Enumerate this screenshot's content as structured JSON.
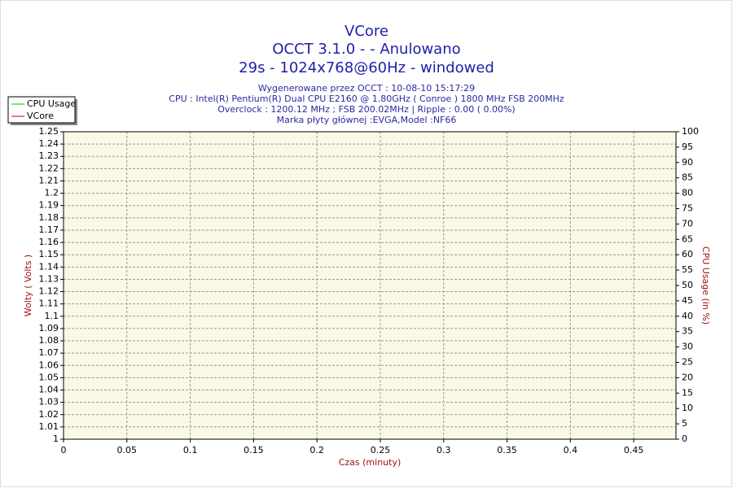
{
  "chart_data": {
    "type": "line",
    "title": "VCore",
    "title_lines": [
      "OCCT 3.1.0 -  - Anulowano",
      "29s - 1024x768@60Hz - windowed"
    ],
    "subtitle_lines": [
      "Wygenerowane przez OCCT : 10-08-10 15:17:29",
      "CPU : Intel(R) Pentium(R) Dual CPU E2160 @ 1.80GHz ( Conroe ) 1800 MHz FSB 200MHz",
      "Overclock : 1200.12 MHz ; FSB 200.02MHz | Ripple : 0.00 ( 0.00%)",
      "Marka płyty głównej :EVGA,Model :NF66"
    ],
    "xlabel": "Czas (minuty)",
    "ylabel": "Wolty ( Volts )",
    "y2label": "CPU Usage (in %)",
    "x": [],
    "series": [
      {
        "name": "CPU Usage",
        "color": "#00c000",
        "values": [],
        "axis": "y2"
      },
      {
        "name": "VCore",
        "color": "#c00000",
        "values": []
      }
    ],
    "xlim": [
      0,
      0.48333
    ],
    "xticks": [
      0,
      0.05,
      0.1,
      0.15,
      0.2,
      0.25,
      0.3,
      0.35,
      0.4,
      0.45
    ],
    "ylim": [
      1,
      1.25
    ],
    "yticks": [
      1,
      1.01,
      1.02,
      1.03,
      1.04,
      1.05,
      1.06,
      1.07,
      1.08,
      1.09,
      1.1,
      1.11,
      1.12,
      1.13,
      1.14,
      1.15,
      1.16,
      1.17,
      1.18,
      1.19,
      1.2,
      1.21,
      1.22,
      1.23,
      1.24,
      1.25
    ],
    "y2lim": [
      0,
      100
    ],
    "y2ticks": [
      0,
      5,
      10,
      15,
      20,
      25,
      30,
      35,
      40,
      45,
      50,
      55,
      60,
      65,
      70,
      75,
      80,
      85,
      90,
      95,
      100
    ],
    "grid": true,
    "legend": "top-left"
  }
}
